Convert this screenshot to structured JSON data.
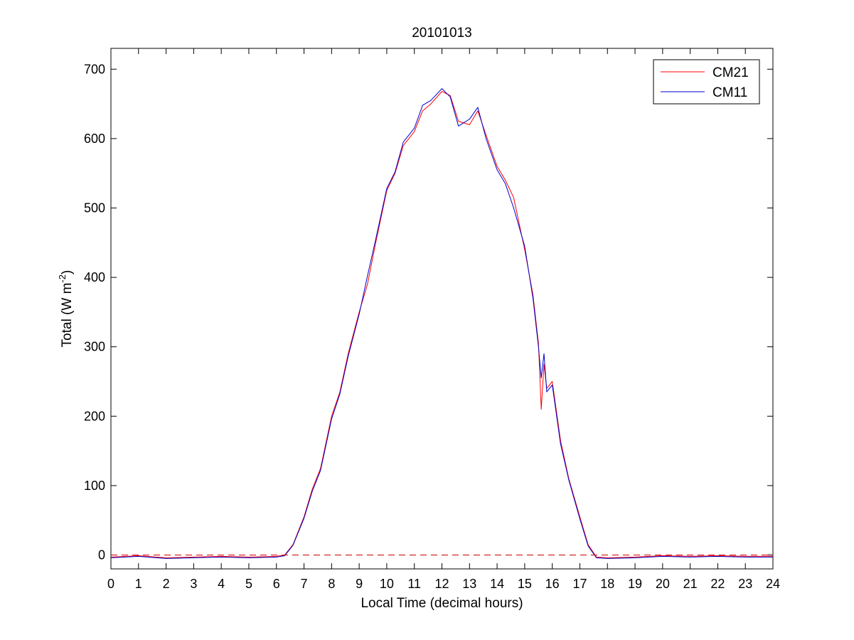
{
  "chart_data": {
    "type": "line",
    "title": "20101013",
    "xlabel": "Local Time (decimal hours)",
    "ylabel": {
      "main": "Total (W m",
      "sup": "-2",
      "close": ")"
    },
    "xlim": [
      0,
      24
    ],
    "ylim": [
      -20,
      730
    ],
    "xticks": [
      0,
      1,
      2,
      3,
      4,
      5,
      6,
      7,
      8,
      9,
      10,
      11,
      12,
      13,
      14,
      15,
      16,
      17,
      18,
      19,
      20,
      21,
      22,
      23,
      24
    ],
    "yticks": [
      0,
      100,
      200,
      300,
      400,
      500,
      600,
      700
    ],
    "grid": false,
    "legend_position": "top-right",
    "reference_line": {
      "y": 0,
      "color": "#cc0000",
      "style": "dashed"
    },
    "series": [
      {
        "name": "CM21",
        "color": "#ff0000",
        "points": [
          [
            0,
            -3
          ],
          [
            1,
            -1
          ],
          [
            2,
            -4
          ],
          [
            3,
            -3
          ],
          [
            4,
            -2
          ],
          [
            5,
            -3
          ],
          [
            6,
            -2
          ],
          [
            6.3,
            0
          ],
          [
            6.6,
            15
          ],
          [
            7,
            55
          ],
          [
            7.3,
            95
          ],
          [
            7.6,
            125
          ],
          [
            8,
            200
          ],
          [
            8.3,
            235
          ],
          [
            8.6,
            290
          ],
          [
            9,
            350
          ],
          [
            9.3,
            390
          ],
          [
            9.6,
            450
          ],
          [
            10,
            525
          ],
          [
            10.3,
            550
          ],
          [
            10.6,
            590
          ],
          [
            11,
            610
          ],
          [
            11.3,
            640
          ],
          [
            11.6,
            650
          ],
          [
            12,
            668
          ],
          [
            12.3,
            662
          ],
          [
            12.6,
            625
          ],
          [
            13,
            620
          ],
          [
            13.3,
            640
          ],
          [
            13.6,
            605
          ],
          [
            14,
            560
          ],
          [
            14.3,
            540
          ],
          [
            14.6,
            515
          ],
          [
            15,
            440
          ],
          [
            15.3,
            375
          ],
          [
            15.5,
            305
          ],
          [
            15.6,
            210
          ],
          [
            15.7,
            275
          ],
          [
            15.8,
            240
          ],
          [
            16,
            250
          ],
          [
            16.3,
            165
          ],
          [
            16.6,
            110
          ],
          [
            17,
            55
          ],
          [
            17.3,
            15
          ],
          [
            17.6,
            -3
          ],
          [
            18,
            -4
          ],
          [
            19,
            -3
          ],
          [
            20,
            -1
          ],
          [
            21,
            -2
          ],
          [
            22,
            -1
          ],
          [
            23,
            -2
          ],
          [
            24,
            -2
          ]
        ]
      },
      {
        "name": "CM11",
        "color": "#0000cc",
        "points": [
          [
            0,
            -4
          ],
          [
            1,
            -2
          ],
          [
            2,
            -5
          ],
          [
            3,
            -4
          ],
          [
            4,
            -3
          ],
          [
            5,
            -4
          ],
          [
            6,
            -3
          ],
          [
            6.3,
            -1
          ],
          [
            6.6,
            14
          ],
          [
            7,
            53
          ],
          [
            7.3,
            92
          ],
          [
            7.6,
            122
          ],
          [
            8,
            196
          ],
          [
            8.3,
            232
          ],
          [
            8.6,
            286
          ],
          [
            9,
            347
          ],
          [
            9.3,
            402
          ],
          [
            9.6,
            455
          ],
          [
            10,
            528
          ],
          [
            10.3,
            552
          ],
          [
            10.6,
            595
          ],
          [
            11,
            615
          ],
          [
            11.3,
            648
          ],
          [
            11.6,
            655
          ],
          [
            12,
            672
          ],
          [
            12.3,
            660
          ],
          [
            12.6,
            618
          ],
          [
            13,
            628
          ],
          [
            13.3,
            645
          ],
          [
            13.6,
            600
          ],
          [
            14,
            555
          ],
          [
            14.3,
            535
          ],
          [
            14.6,
            500
          ],
          [
            15,
            445
          ],
          [
            15.3,
            370
          ],
          [
            15.5,
            300
          ],
          [
            15.6,
            255
          ],
          [
            15.7,
            290
          ],
          [
            15.8,
            235
          ],
          [
            16,
            245
          ],
          [
            16.3,
            160
          ],
          [
            16.6,
            108
          ],
          [
            17,
            52
          ],
          [
            17.3,
            13
          ],
          [
            17.6,
            -4
          ],
          [
            18,
            -5
          ],
          [
            19,
            -4
          ],
          [
            20,
            -2
          ],
          [
            21,
            -3
          ],
          [
            22,
            -2
          ],
          [
            23,
            -3
          ],
          [
            24,
            -3
          ]
        ]
      }
    ]
  }
}
